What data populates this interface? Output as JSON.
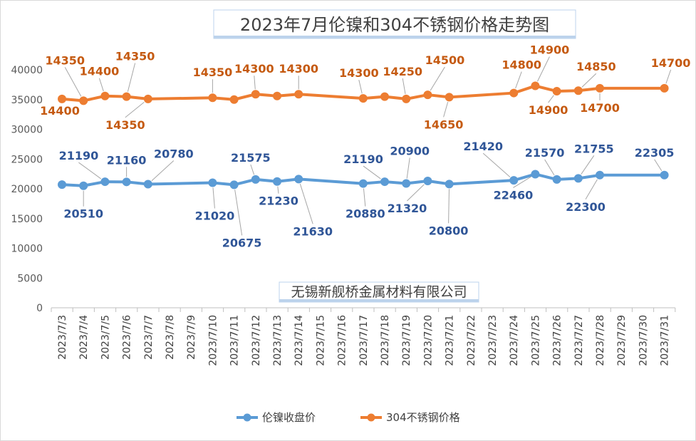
{
  "chart_data": {
    "type": "line",
    "title": "2023年7月伦镍和304不锈钢价格走势图",
    "watermark": "无锡新舰桥金属材料有限公司",
    "xlabel": "",
    "ylabel": "",
    "ylim": [
      0,
      40000
    ],
    "yticks": [
      0,
      5000,
      10000,
      15000,
      20000,
      25000,
      30000,
      35000,
      40000
    ],
    "grid": false,
    "legend": "bottom",
    "categories": [
      "2023/7/3",
      "2023/7/4",
      "2023/7/5",
      "2023/7/6",
      "2023/7/7",
      "2023/7/8",
      "2023/7/9",
      "2023/7/10",
      "2023/7/11",
      "2023/7/12",
      "2023/7/13",
      "2023/7/14",
      "2023/7/15",
      "2023/7/16",
      "2023/7/17",
      "2023/7/18",
      "2023/7/19",
      "2023/7/20",
      "2023/7/21",
      "2023/7/22",
      "2023/7/23",
      "2023/7/24",
      "2023/7/25",
      "2023/7/26",
      "2023/7/27",
      "2023/7/28",
      "2023/7/29",
      "2023/7/30",
      "2023/7/31"
    ],
    "series": [
      {
        "name": "伦镍收盘价",
        "color": "#5B9BD5",
        "label_color": "#2F5597",
        "points": [
          {
            "x": "2023/7/3",
            "y": 20700,
            "label": ""
          },
          {
            "x": "2023/7/4",
            "y": 20510,
            "label": "20510"
          },
          {
            "x": "2023/7/5",
            "y": 21190,
            "label": "21190"
          },
          {
            "x": "2023/7/6",
            "y": 21160,
            "label": "21160"
          },
          {
            "x": "2023/7/7",
            "y": 20780,
            "label": "20780"
          },
          {
            "x": "2023/7/10",
            "y": 21020,
            "label": "21020"
          },
          {
            "x": "2023/7/11",
            "y": 20675,
            "label": "20675"
          },
          {
            "x": "2023/7/12",
            "y": 21575,
            "label": "21575"
          },
          {
            "x": "2023/7/13",
            "y": 21230,
            "label": "21230"
          },
          {
            "x": "2023/7/14",
            "y": 21630,
            "label": "21630"
          },
          {
            "x": "2023/7/17",
            "y": 20880,
            "label": "20880"
          },
          {
            "x": "2023/7/18",
            "y": 21190,
            "label": "21190"
          },
          {
            "x": "2023/7/19",
            "y": 20900,
            "label": "20900"
          },
          {
            "x": "2023/7/20",
            "y": 21320,
            "label": "21320"
          },
          {
            "x": "2023/7/21",
            "y": 20800,
            "label": "20800"
          },
          {
            "x": "2023/7/24",
            "y": 21420,
            "label": "21420"
          },
          {
            "x": "2023/7/25",
            "y": 22460,
            "label": "22460"
          },
          {
            "x": "2023/7/26",
            "y": 21570,
            "label": "21570"
          },
          {
            "x": "2023/7/27",
            "y": 21755,
            "label": "21755"
          },
          {
            "x": "2023/7/28",
            "y": 22300,
            "label": "22300"
          },
          {
            "x": "2023/7/31",
            "y": 22305,
            "label": "22305"
          }
        ]
      },
      {
        "name": "304不锈钢价格",
        "color": "#ED7D31",
        "label_color": "#C55A11",
        "points": [
          {
            "x": "2023/7/3",
            "y": 35100,
            "label": "14400"
          },
          {
            "x": "2023/7/4",
            "y": 34800,
            "label": "14350"
          },
          {
            "x": "2023/7/5",
            "y": 35600,
            "label": "14400"
          },
          {
            "x": "2023/7/6",
            "y": 35500,
            "label": "14350"
          },
          {
            "x": "2023/7/7",
            "y": 35100,
            "label": "14350"
          },
          {
            "x": "2023/7/10",
            "y": 35300,
            "label": "14350"
          },
          {
            "x": "2023/7/11",
            "y": 35000,
            "label": ""
          },
          {
            "x": "2023/7/12",
            "y": 35900,
            "label": "14300"
          },
          {
            "x": "2023/7/13",
            "y": 35600,
            "label": ""
          },
          {
            "x": "2023/7/14",
            "y": 35900,
            "label": "14300"
          },
          {
            "x": "2023/7/17",
            "y": 35200,
            "label": "14300"
          },
          {
            "x": "2023/7/18",
            "y": 35500,
            "label": ""
          },
          {
            "x": "2023/7/19",
            "y": 35100,
            "label": "14250"
          },
          {
            "x": "2023/7/20",
            "y": 35800,
            "label": "14500"
          },
          {
            "x": "2023/7/21",
            "y": 35400,
            "label": "14650"
          },
          {
            "x": "2023/7/24",
            "y": 36100,
            "label": "14800"
          },
          {
            "x": "2023/7/25",
            "y": 37300,
            "label": "14900"
          },
          {
            "x": "2023/7/26",
            "y": 36400,
            "label": "14900"
          },
          {
            "x": "2023/7/27",
            "y": 36500,
            "label": "14850"
          },
          {
            "x": "2023/7/28",
            "y": 36900,
            "label": "14700"
          },
          {
            "x": "2023/7/31",
            "y": 36900,
            "label": "14700"
          }
        ]
      }
    ]
  }
}
